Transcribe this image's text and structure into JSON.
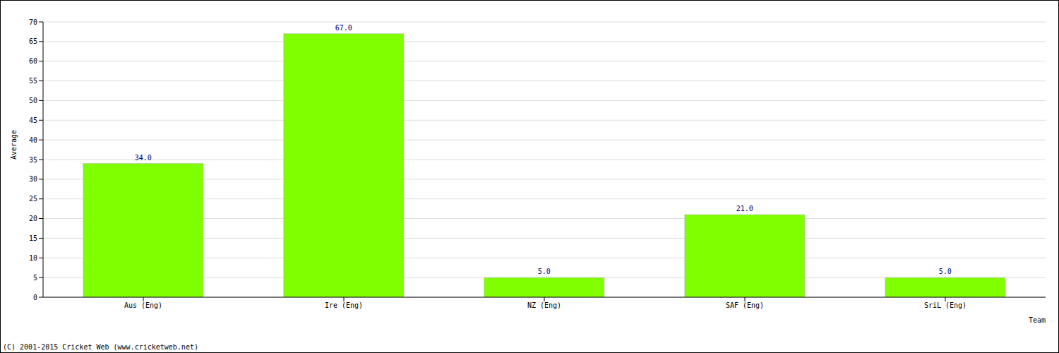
{
  "chart_data": {
    "type": "bar",
    "x_label": "Team",
    "y_label": "Average",
    "categories": [
      "Aus (Eng)",
      "Ire (Eng)",
      "NZ (Eng)",
      "SAF (Eng)",
      "SriL (Eng)"
    ],
    "values": [
      34,
      67,
      5,
      21,
      5
    ],
    "value_labels": [
      "34.0",
      "67.0",
      "5.0",
      "21.0",
      "5.0"
    ],
    "data_labels": true,
    "color": "#80ff00",
    "ylim": [
      0,
      70
    ],
    "yticks": [
      0,
      5,
      10,
      15,
      20,
      25,
      30,
      35,
      40,
      45,
      50,
      55,
      60,
      65,
      70
    ],
    "grid": true,
    "annotations": [
      "(C) 2001-2015 Cricket Web (www.cricketweb.net)"
    ]
  }
}
